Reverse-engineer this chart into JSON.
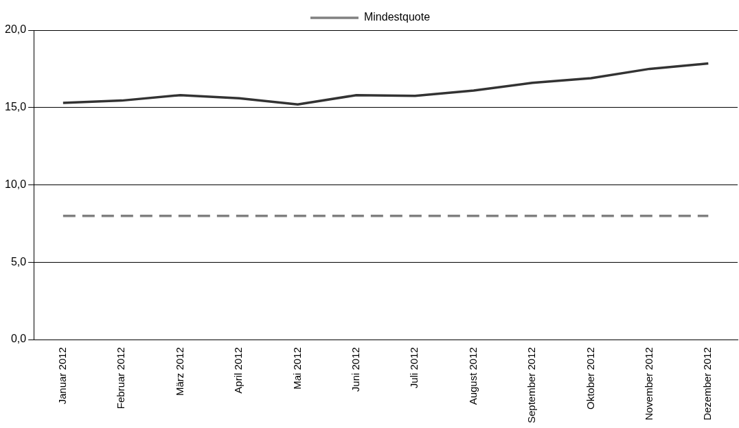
{
  "chart_data": {
    "type": "line",
    "categories": [
      "Januar 2012",
      "Februar 2012",
      "März 2012",
      "April 2012",
      "Mai 2012",
      "Juni 2012",
      "Juli 2012",
      "August 2012",
      "September 2012",
      "Oktober 2012",
      "November 2012",
      "Dezember 2012"
    ],
    "series": [
      {
        "color": "#333333",
        "line_style": "solid",
        "values": [
          15.3,
          15.45,
          15.8,
          15.6,
          15.2,
          15.8,
          15.75,
          16.1,
          16.6,
          16.9,
          17.5,
          17.85
        ]
      },
      {
        "name": "Mindestquote",
        "color": "#808080",
        "line_style": "dashed",
        "values": [
          8.0,
          8.0,
          8.0,
          8.0,
          8.0,
          8.0,
          8.0,
          8.0,
          8.0,
          8.0,
          8.0,
          8.0
        ]
      }
    ],
    "ylim": [
      0,
      20
    ],
    "yticks": [
      {
        "value": 0,
        "label": "0,0"
      },
      {
        "value": 5,
        "label": "5,0"
      },
      {
        "value": 10,
        "label": "10,0"
      },
      {
        "value": 15,
        "label": "15,0"
      },
      {
        "value": 20,
        "label": "20,0"
      }
    ],
    "grid": "y",
    "legend": "top",
    "marker": "none"
  }
}
